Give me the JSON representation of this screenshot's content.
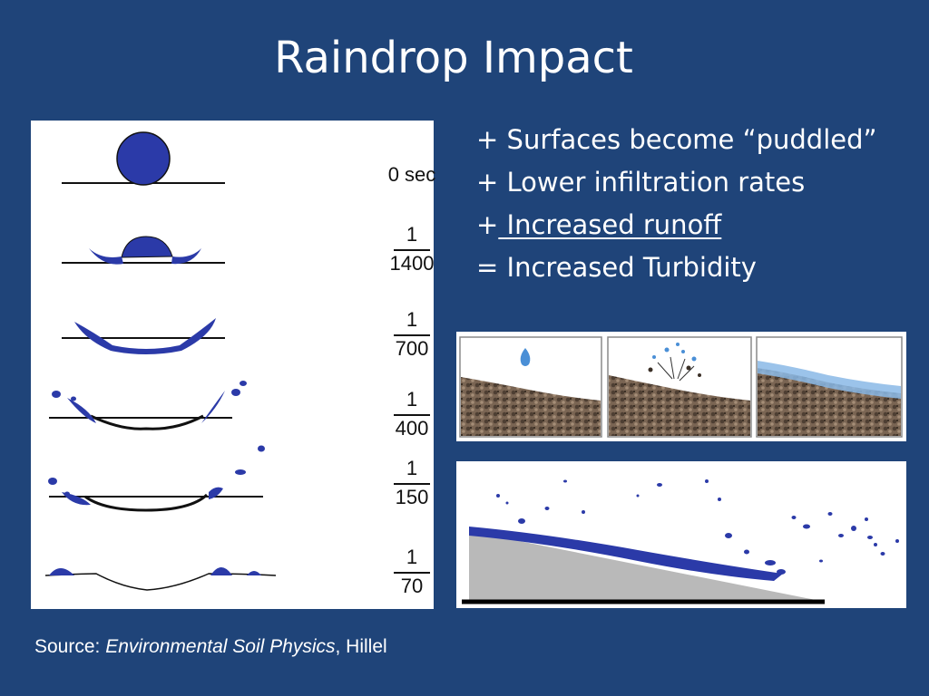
{
  "slide": {
    "title": "Raindrop Impact"
  },
  "bullets": [
    {
      "prefix": "+ ",
      "text": "Surfaces become “puddled”"
    },
    {
      "prefix": "+ ",
      "text": "Lower infiltration rates"
    },
    {
      "prefix": "+",
      "text": " Increased runoff",
      "underlined": true
    },
    {
      "prefix": "= ",
      "text": "Increased Turbidity"
    }
  ],
  "time_labels": [
    {
      "text": "0 sec"
    },
    {
      "num": "1",
      "den": "1400"
    },
    {
      "num": "1",
      "den": "700"
    },
    {
      "num": "1",
      "den": "400"
    },
    {
      "num": "1",
      "den": "150"
    },
    {
      "num": "1",
      "den": "70"
    }
  ],
  "source": {
    "prefix": "Source: ",
    "book": "Environmental Soil Physics",
    "author": ", Hillel"
  },
  "colors": {
    "background": "#1f4479",
    "drop": "#2b3aa8",
    "soil": "#6e5a4a",
    "slope": "#b9b9b9"
  }
}
